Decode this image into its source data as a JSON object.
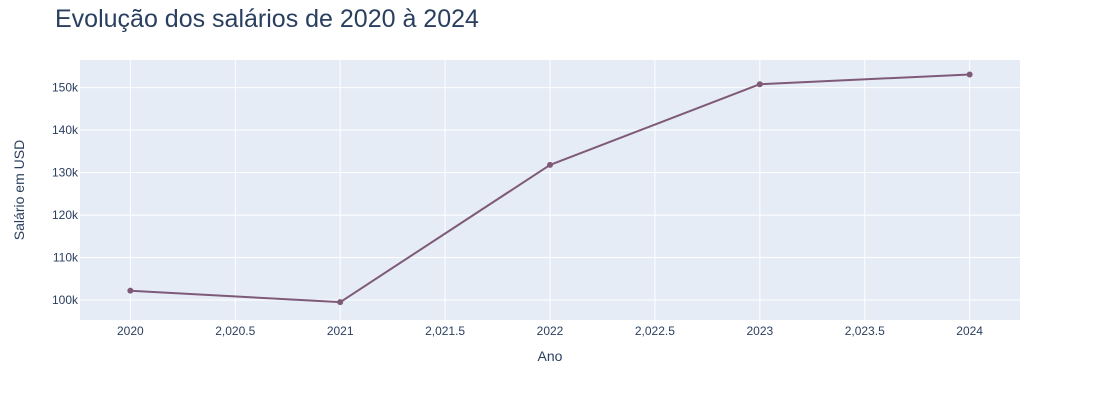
{
  "chart_data": {
    "type": "line",
    "title": "Evolução dos salários de 2020 à 2024",
    "xlabel": "Ano",
    "ylabel": "Salário em USD",
    "x": [
      2020,
      2021,
      2022,
      2023,
      2024
    ],
    "series": [
      {
        "values": [
          102200,
          99500,
          131800,
          150800,
          153100
        ]
      }
    ],
    "xlim": [
      2019.76,
      2024.24
    ],
    "ylim": [
      95300,
      156500
    ],
    "x_ticks": [
      2020,
      2020.5,
      2021,
      2021.5,
      2022,
      2022.5,
      2023,
      2023.5,
      2024
    ],
    "x_tick_labels": [
      "2020",
      "2,020.5",
      "2021",
      "2,021.5",
      "2022",
      "2,022.5",
      "2023",
      "2,023.5",
      "2024"
    ],
    "y_ticks": [
      100000,
      110000,
      120000,
      130000,
      140000,
      150000
    ],
    "y_tick_labels": [
      "100k",
      "110k",
      "120k",
      "130k",
      "140k",
      "150k"
    ],
    "grid": true,
    "colors": {
      "line": "#7e5a78",
      "plot_background": "#e5ecf6",
      "grid": "#ffffff",
      "text": "#2a3f5f",
      "tick_text": "#2a3f5f"
    }
  }
}
